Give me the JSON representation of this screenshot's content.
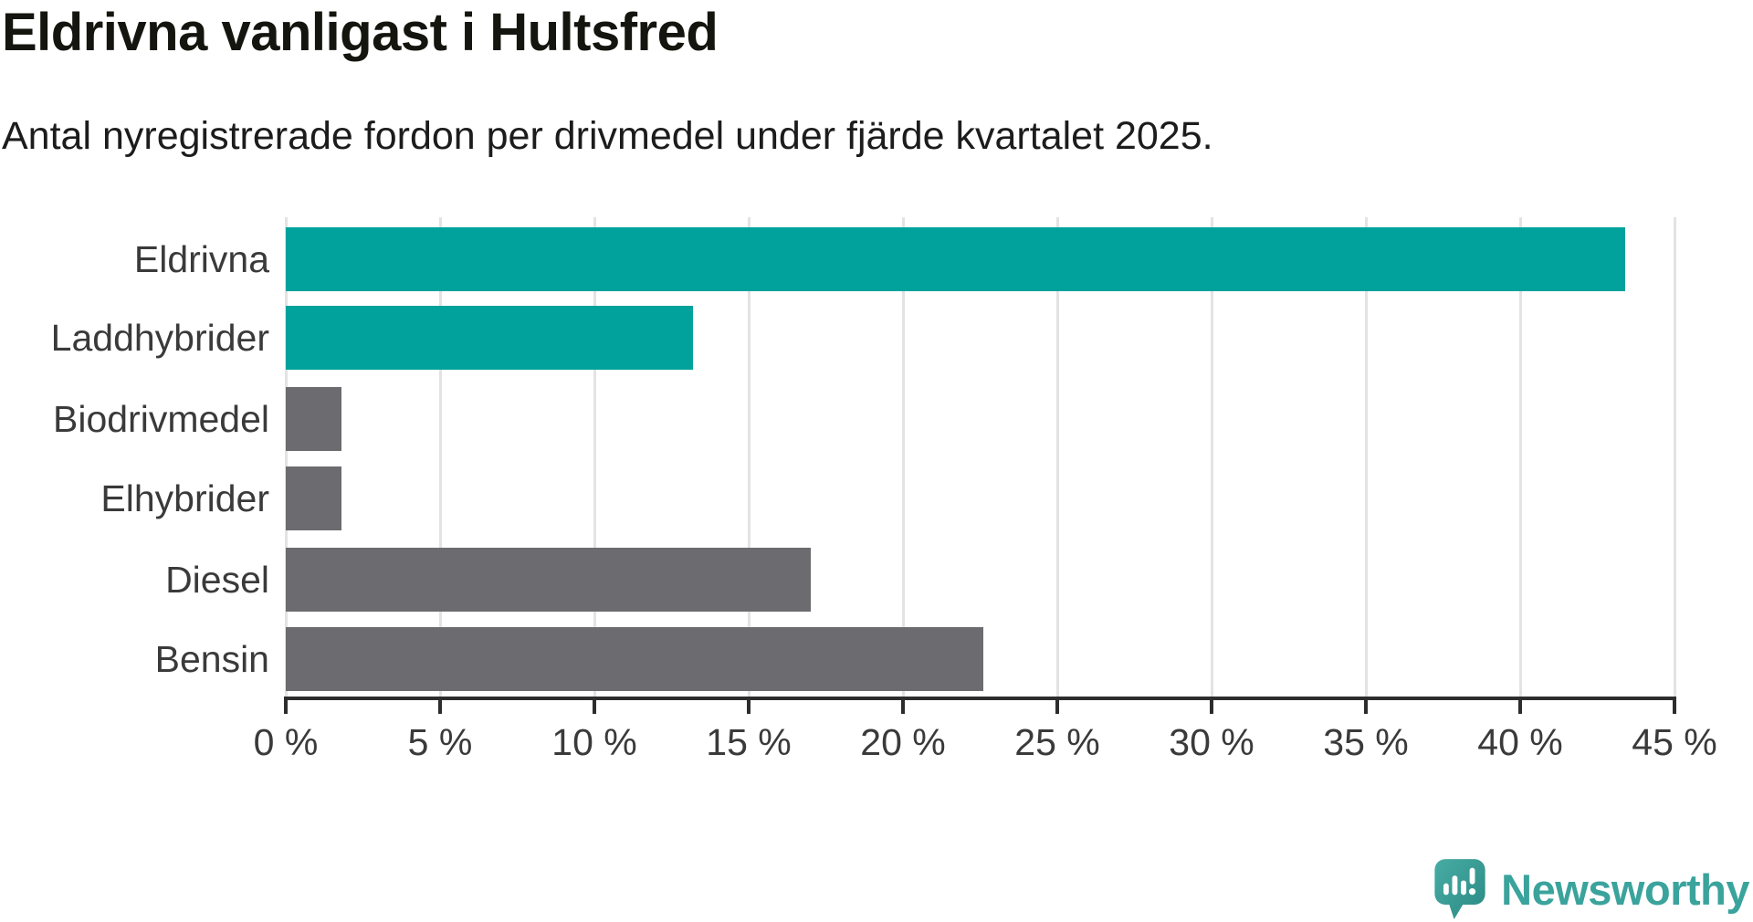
{
  "title": "Eldrivna vanligast i Hultsfred",
  "subtitle": "Antal nyregistrerade fordon per drivmedel under fjärde kvartalet 2025.",
  "chart_data": {
    "type": "bar",
    "orientation": "horizontal",
    "title": "Eldrivna vanligast i Hultsfred",
    "subtitle": "Antal nyregistrerade fordon per drivmedel under fjärde kvartalet 2025.",
    "categories": [
      "Eldrivna",
      "Laddhybrider",
      "Biodrivmedel",
      "Elhybrider",
      "Diesel",
      "Bensin"
    ],
    "values": [
      43.4,
      13.2,
      1.8,
      1.8,
      17.0,
      22.6
    ],
    "unit": "%",
    "bar_colors": [
      "#00a29b",
      "#00a29b",
      "#6c6c70",
      "#6c6c70",
      "#6c6c70",
      "#6c6c70"
    ],
    "xlim": [
      0,
      45
    ],
    "x_ticks": [
      0,
      5,
      10,
      15,
      20,
      25,
      30,
      35,
      40,
      45
    ],
    "x_tick_labels": [
      "0 %",
      "5 %",
      "10 %",
      "15 %",
      "20 %",
      "25 %",
      "30 %",
      "35 %",
      "40 %",
      "45 %"
    ],
    "grid": "vertical-gridlines-on",
    "legend": "none"
  },
  "colors": {
    "accent_teal": "#00a29b",
    "bar_gray": "#6c6c70",
    "axis": "#2d2d2d",
    "gridline": "#e3e3e3",
    "label_text": "#3a3a3a",
    "logo_teal": "#3aa39c"
  },
  "branding": {
    "logo_text": "Newsworthy",
    "logo_icon": "newsworthy-speech-bubble-chart-icon"
  }
}
